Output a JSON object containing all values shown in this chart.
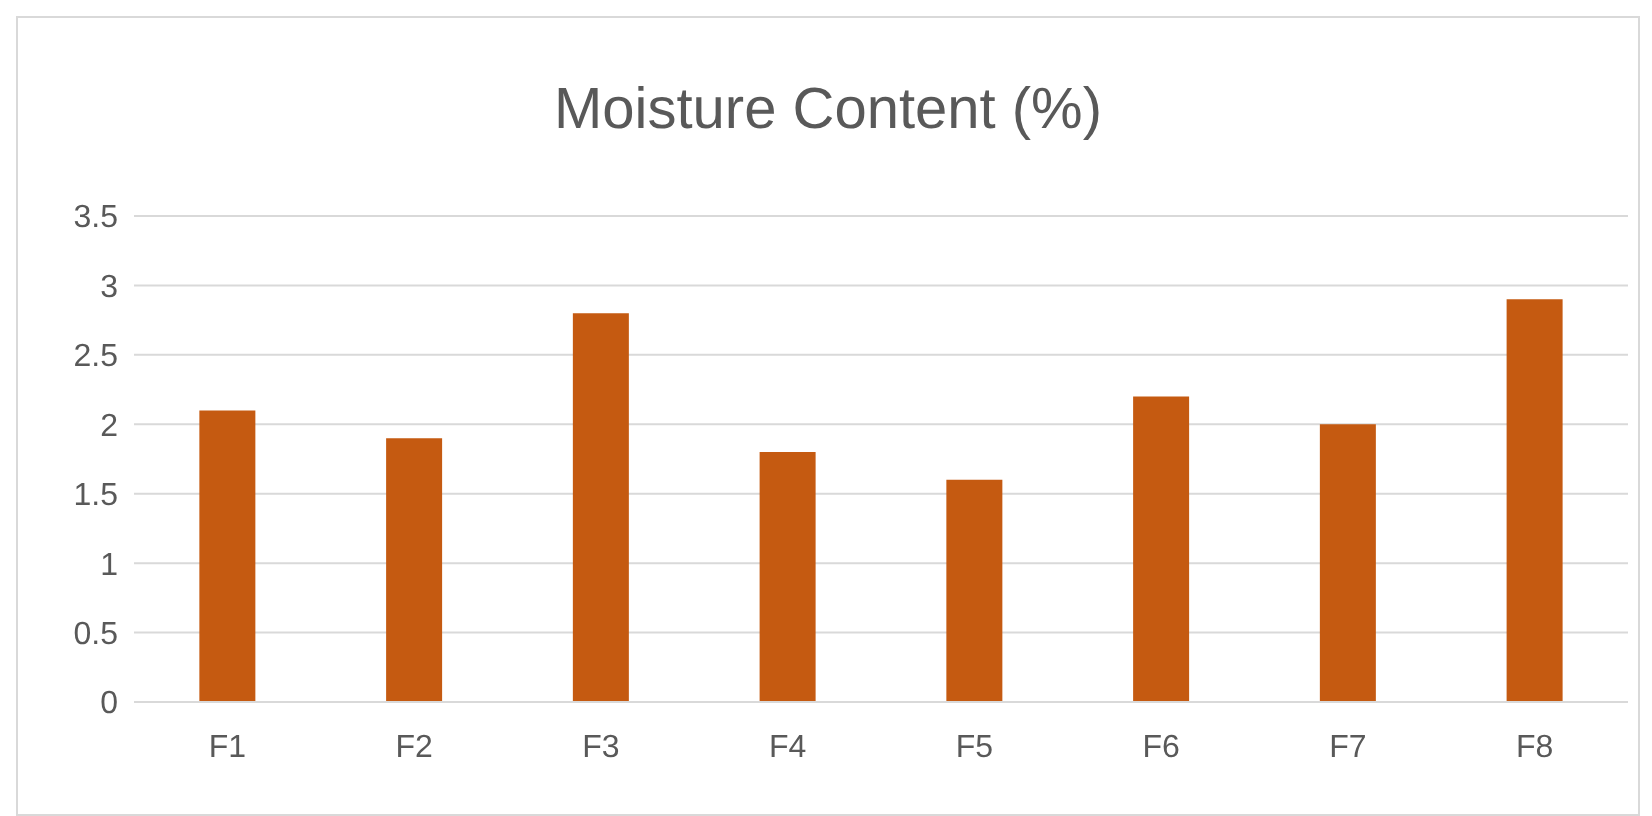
{
  "chart_data": {
    "type": "bar",
    "title": "Moisture Content (%)",
    "categories": [
      "F1",
      "F2",
      "F3",
      "F4",
      "F5",
      "F6",
      "F7",
      "F8"
    ],
    "values": [
      2.1,
      1.9,
      2.8,
      1.8,
      1.6,
      2.2,
      2.0,
      2.9
    ],
    "color": "#c55a11",
    "ylim": [
      0,
      3.5
    ],
    "yticks": [
      0,
      0.5,
      1,
      1.5,
      2,
      2.5,
      3,
      3.5
    ],
    "grid": "y"
  }
}
